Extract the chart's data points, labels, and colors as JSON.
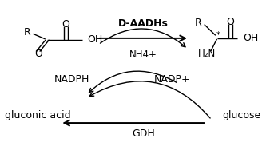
{
  "bg_color": "#ffffff",
  "fig_width": 3.48,
  "fig_height": 1.98,
  "dpi": 100,
  "line_color": "#000000",
  "text_color": "#000000",
  "label_daadhs": "D-AADHs",
  "label_nh4": "NH4+",
  "label_nadph": "NADPH",
  "label_nadp": "NADP+",
  "label_gluconic": "gluconic acid",
  "label_glucose": "glucose",
  "label_gdh": "GDH"
}
